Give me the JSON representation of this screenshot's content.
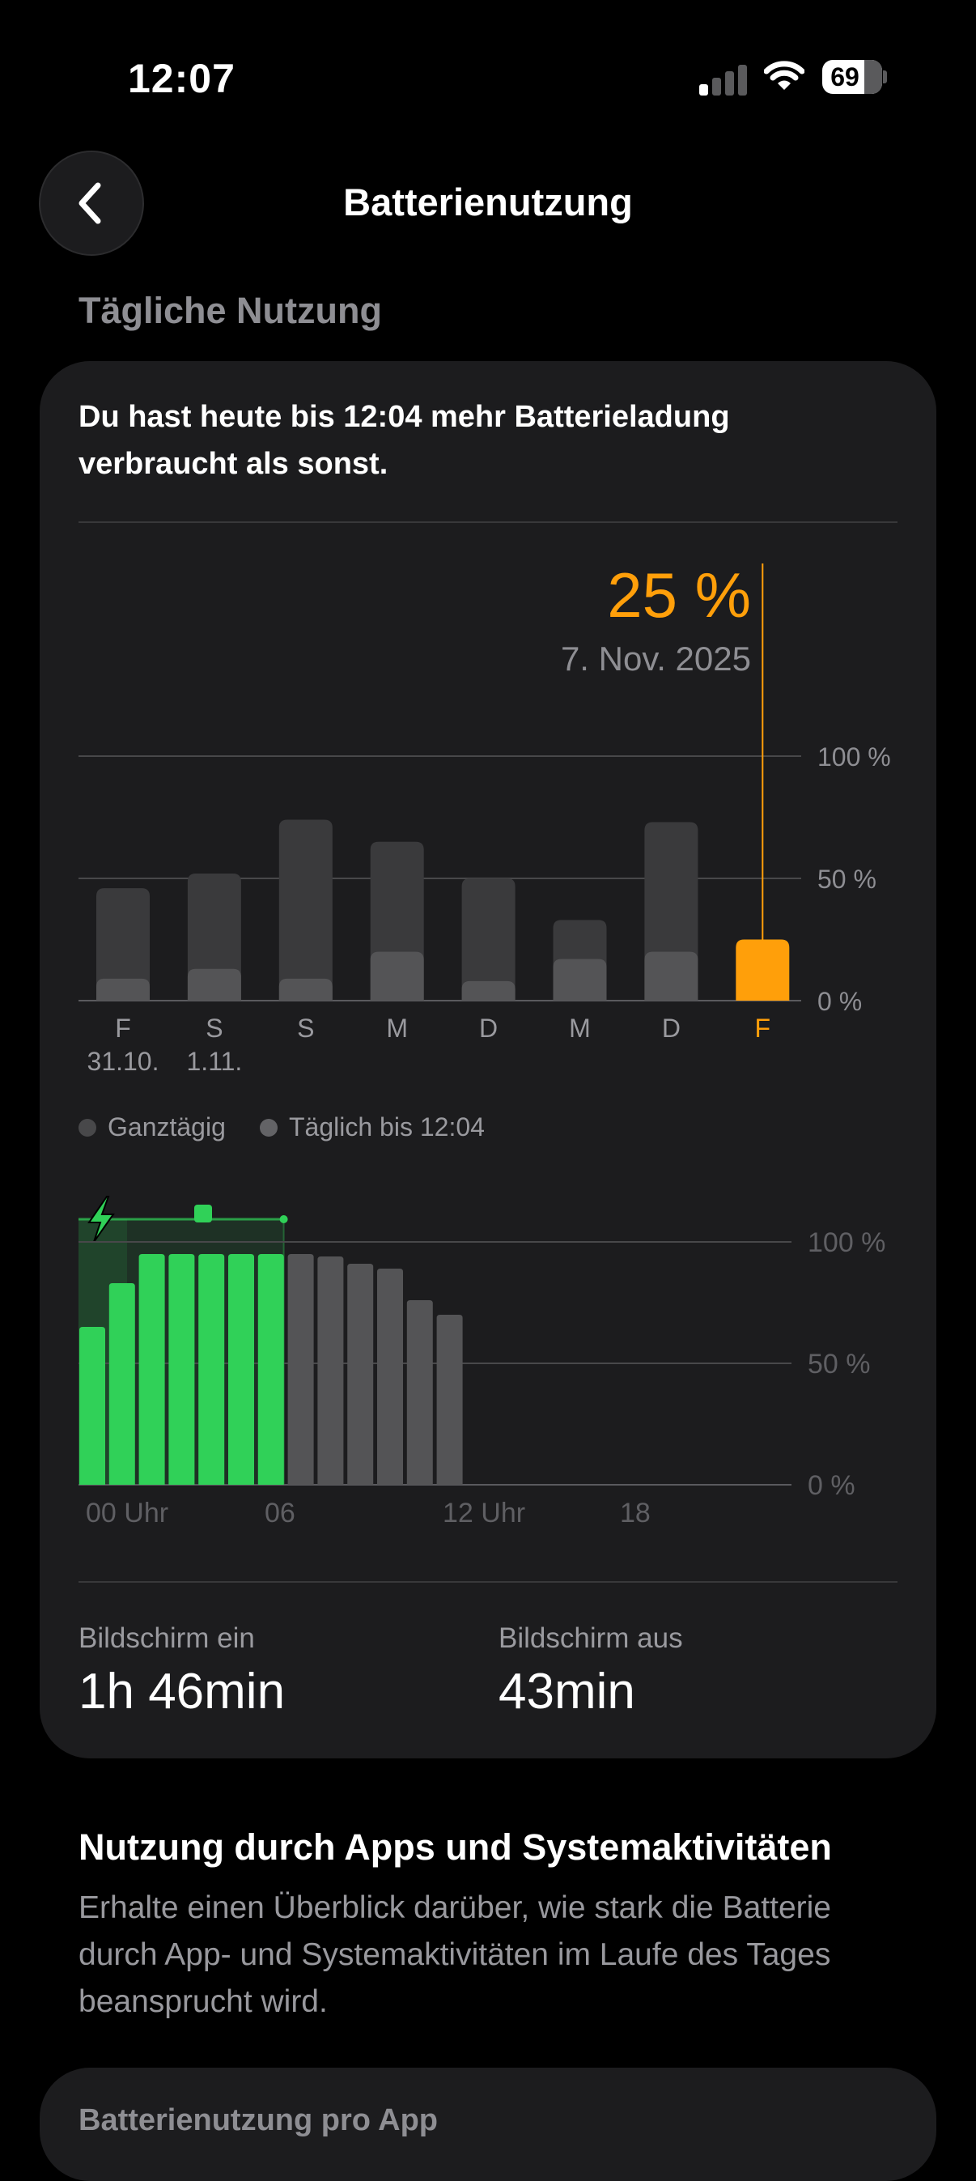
{
  "status_bar": {
    "time": "12:07",
    "battery": "69"
  },
  "nav": {
    "title": "Batterienutzung"
  },
  "daily": {
    "heading": "Tägliche Nutzung",
    "message": "Du hast heute bis 12:04 mehr Batterieladung verbraucht als sonst.",
    "selected_value": "25 %",
    "selected_date": "7. Nov. 2025",
    "legend": {
      "all_day": "Ganztägig",
      "until_now": "Täglich bis 12:04"
    },
    "accent_color": "#ff9f0a",
    "charge_color": "#30d158"
  },
  "screen": {
    "on_label": "Bildschirm ein",
    "on_value": "1h 46min",
    "off_label": "Bildschirm aus",
    "off_value": "43min"
  },
  "apps_section": {
    "title": "Nutzung durch Apps und Systemaktivitäten",
    "description": "Erhalte einen Überblick darüber, wie stark die Batterie durch App- und Systemaktivitäten im Laufe des Tages beansprucht wird.",
    "card_title": "Batterienutzung pro App"
  },
  "chart_data": [
    {
      "type": "bar",
      "categories": [
        "F",
        "S",
        "S",
        "M",
        "D",
        "M",
        "D",
        "F"
      ],
      "date_labels": [
        "31.10.",
        "1.11.",
        "",
        "",
        "",
        "",
        "",
        ""
      ],
      "series": [
        {
          "name": "Ganztägig",
          "values": [
            46,
            52,
            74,
            65,
            50,
            33,
            73,
            25
          ]
        },
        {
          "name": "Täglich bis 12:04",
          "values": [
            9,
            13,
            9,
            20,
            8,
            17,
            20,
            25
          ]
        }
      ],
      "highlight_index": 7,
      "yticks": [
        "100 %",
        "50 %",
        "0 %"
      ],
      "ylim": [
        0,
        100
      ]
    },
    {
      "type": "bar",
      "x_ticks": [
        "00 Uhr",
        "06",
        "12 Uhr",
        "18"
      ],
      "values": [
        65,
        83,
        95,
        95,
        95,
        95,
        95,
        95,
        94,
        91,
        89,
        76,
        70
      ],
      "charging_count": 7,
      "yticks": [
        "100 %",
        "50 %",
        "0 %"
      ],
      "ylim": [
        0,
        100
      ]
    }
  ]
}
